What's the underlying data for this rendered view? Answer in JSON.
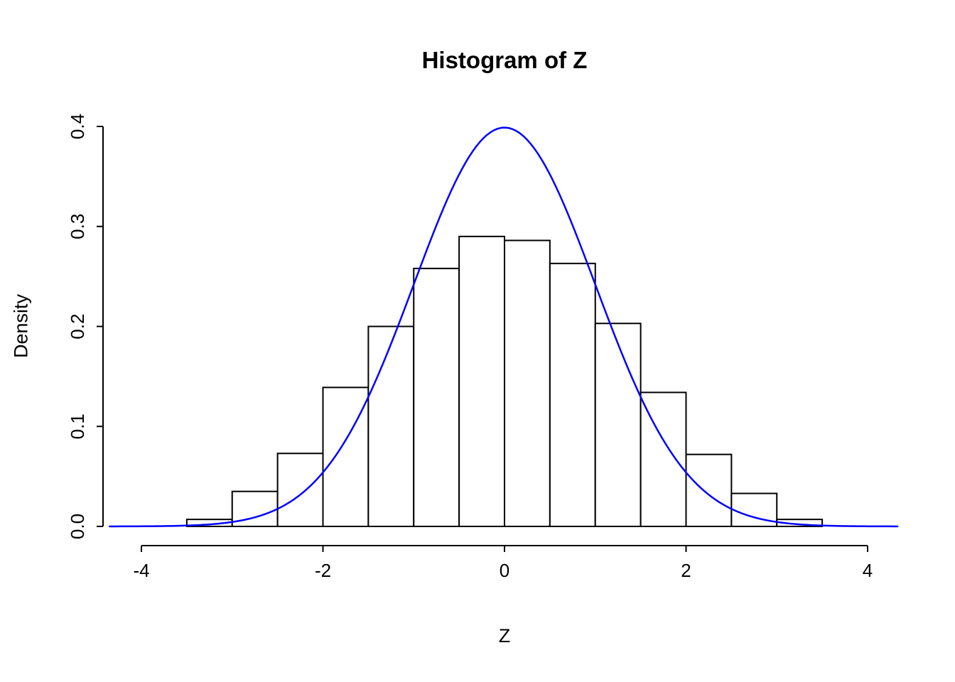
{
  "chart_data": {
    "type": "bar",
    "subtype": "histogram-with-density-curve",
    "title": "Histogram of Z",
    "xlabel": "Z",
    "ylabel": "Density",
    "xlim": [
      -4.35,
      4.35
    ],
    "ylim": [
      0,
      0.4
    ],
    "x_ticks": [
      -4,
      -2,
      0,
      2,
      4
    ],
    "x_tick_labels": [
      "-4",
      "-2",
      "0",
      "2",
      "4"
    ],
    "y_ticks": [
      0.0,
      0.1,
      0.2,
      0.3,
      0.4
    ],
    "y_tick_labels": [
      "0.0",
      "0.1",
      "0.2",
      "0.3",
      "0.4"
    ],
    "grid": "off",
    "legend": "none",
    "bin_width": 0.5,
    "bin_breaks": [
      -3.5,
      -3.0,
      -2.5,
      -2.0,
      -1.5,
      -1.0,
      -0.5,
      0.0,
      0.5,
      1.0,
      1.5,
      2.0,
      2.5,
      3.0,
      3.5
    ],
    "densities": [
      0.007,
      0.035,
      0.073,
      0.139,
      0.2,
      0.258,
      0.29,
      0.286,
      0.263,
      0.203,
      0.134,
      0.072,
      0.033,
      0.007
    ],
    "bar_fill": "#FFFFFF",
    "bar_stroke": "#000000",
    "overlay_curve": {
      "name": "standard-normal-density",
      "mean": 0,
      "sd": 1,
      "peak_density": 0.3989,
      "color": "#0000FF",
      "z_range": [
        -4.35,
        4.35
      ]
    },
    "axis_color": "#000000",
    "background_color": "#FFFFFF"
  }
}
